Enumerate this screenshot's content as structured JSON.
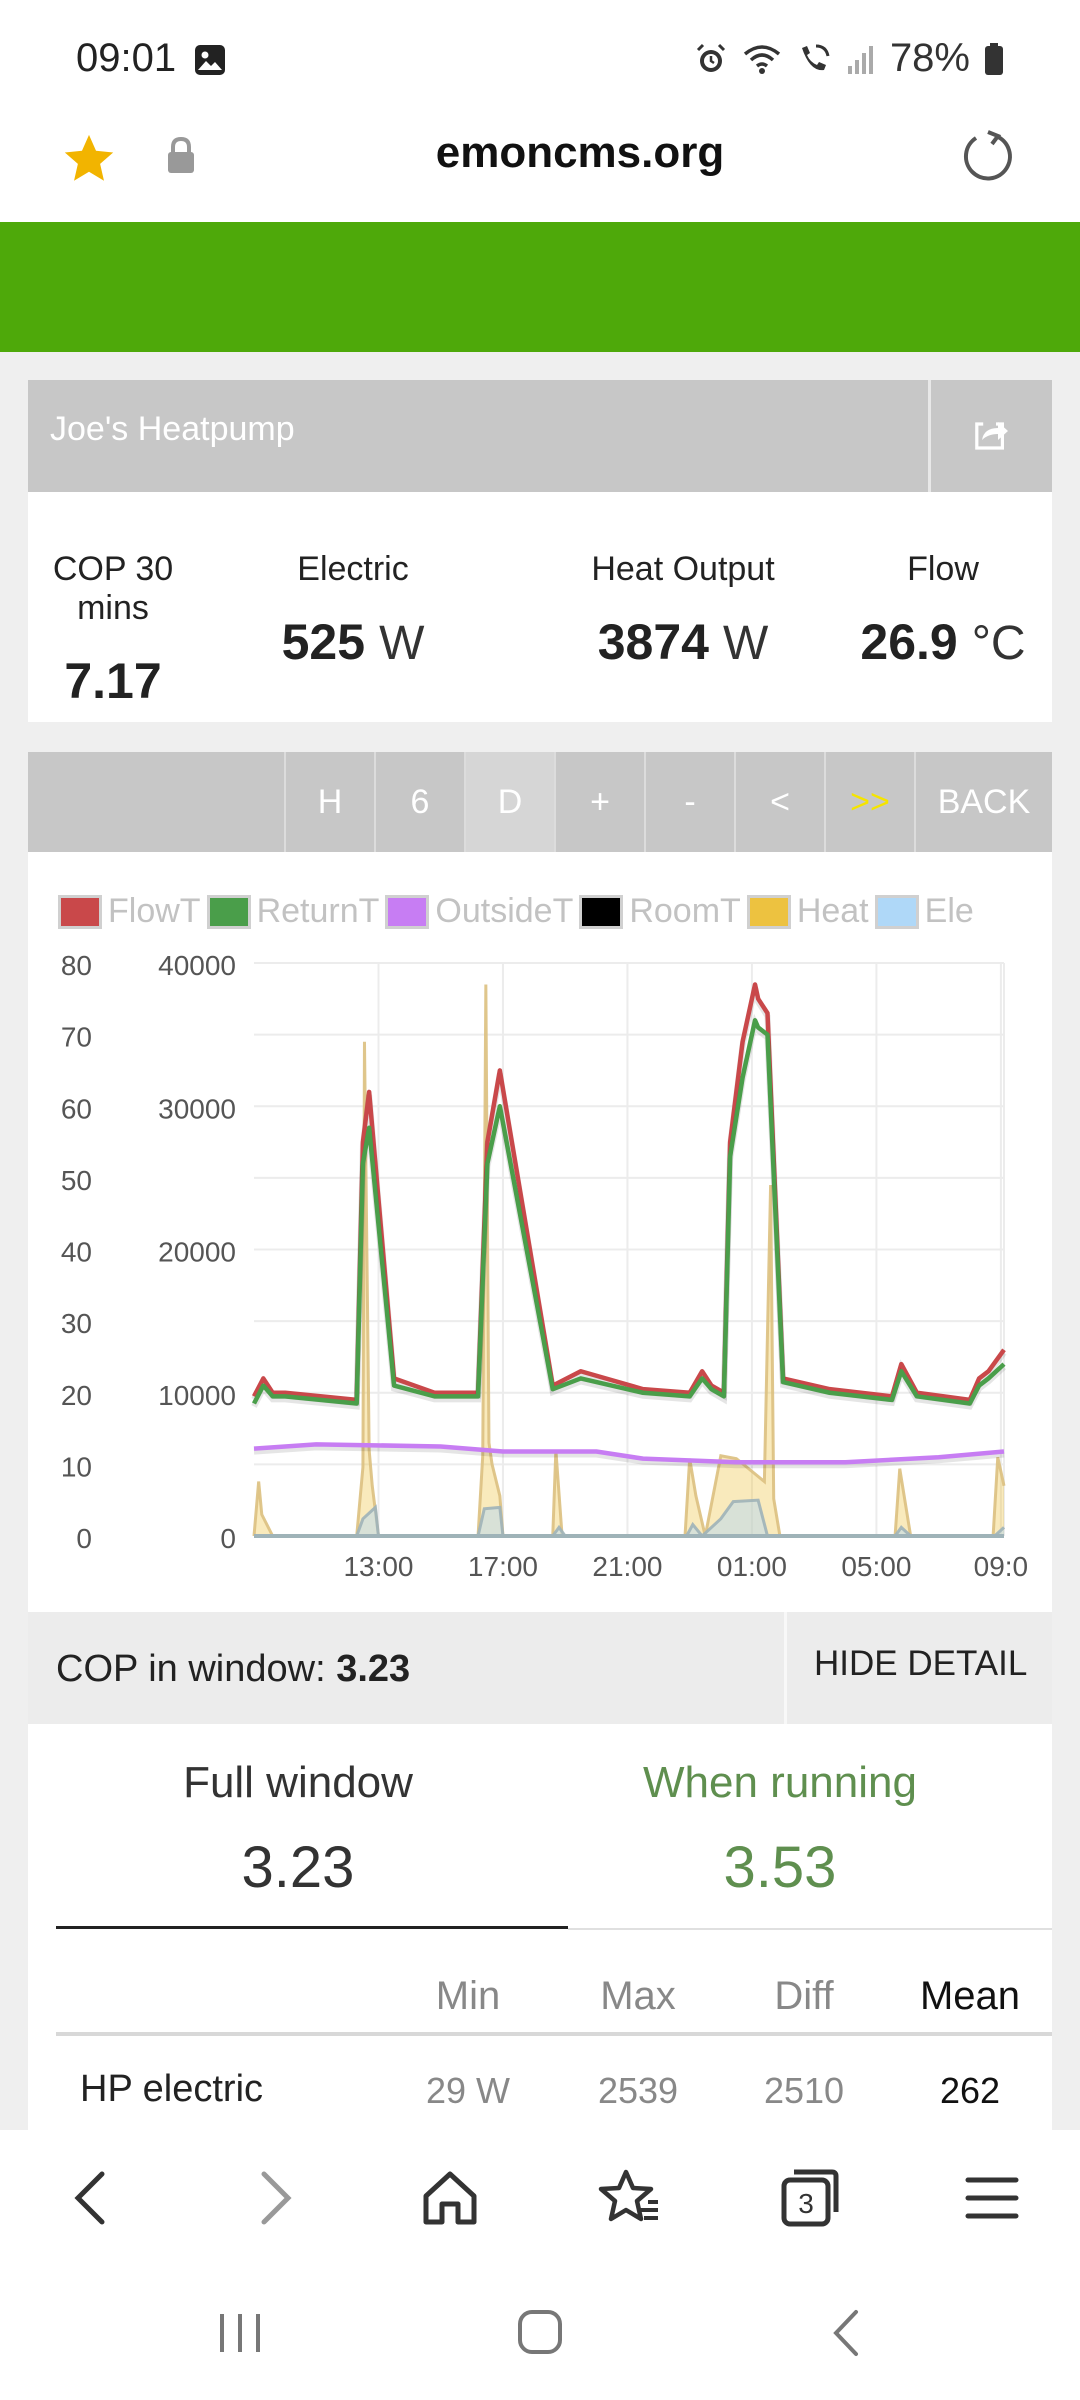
{
  "status_bar": {
    "time": "09:01",
    "battery": "78%",
    "icons": [
      "image-icon",
      "alarm-icon",
      "wifi-icon",
      "wifi-calling-icon",
      "signal-icon",
      "battery-icon"
    ]
  },
  "browser": {
    "url": "emoncms.org",
    "icons": [
      "star-icon",
      "lock-icon",
      "reload-icon"
    ]
  },
  "panel": {
    "title": "Joe's Heatpump"
  },
  "metrics": [
    {
      "label": "COP 30 mins",
      "value": "7.17",
      "unit": ""
    },
    {
      "label": "Electric",
      "value": "525",
      "unit": "W"
    },
    {
      "label": "Heat Output",
      "value": "3874",
      "unit": "W"
    },
    {
      "label": "Flow",
      "value": "26.9",
      "unit": "°C"
    }
  ],
  "range_buttons": [
    "H",
    "6",
    "D",
    "+",
    "-",
    "<",
    ">>",
    "BACK"
  ],
  "colors": {
    "accent_green": "#4ea90a",
    "highlight_yellow": "#f5e400",
    "running_green": "#5f8f4f"
  },
  "chart_data": {
    "type": "line",
    "legend": [
      {
        "name": "FlowT",
        "color": "#c9484a"
      },
      {
        "name": "ReturnT",
        "color": "#4a9e4a"
      },
      {
        "name": "OutsideT",
        "color": "#c77df3"
      },
      {
        "name": "RoomT",
        "color": "#000000"
      },
      {
        "name": "Heat",
        "color": "#edc240"
      },
      {
        "name": "Ele",
        "color": "#afd8f8"
      }
    ],
    "left_axis_ticks": [
      "0",
      "10",
      "20",
      "30",
      "40",
      "50",
      "60",
      "70",
      "80"
    ],
    "right_axis_ticks": [
      "0",
      "10000",
      "20000",
      "30000",
      "40000"
    ],
    "x_ticks": [
      "13:00",
      "17:00",
      "21:00",
      "01:00",
      "05:00",
      "09:0"
    ],
    "ylim_left": [
      0,
      80
    ],
    "ylim_right": [
      0,
      40000
    ],
    "grid": true,
    "series": [
      {
        "name": "FlowT",
        "axis": "left",
        "x": [
          9.0,
          9.3,
          9.6,
          10.0,
          12.3,
          12.5,
          12.7,
          13.5,
          14.8,
          16.2,
          16.5,
          16.9,
          18.6,
          19.5,
          21.5,
          23.0,
          23.4,
          23.7,
          24.1,
          24.3,
          24.7,
          25.1,
          25.2,
          25.5,
          26.0,
          27.5,
          29.5,
          29.8,
          30.3,
          32.0,
          32.3,
          32.6,
          33.1
        ],
        "y": [
          19.5,
          22,
          20,
          20,
          19,
          55,
          62,
          22,
          20,
          20,
          55,
          65,
          21,
          23,
          20.5,
          20,
          23,
          21,
          20,
          55,
          69,
          77,
          75,
          73,
          22,
          20.5,
          19.5,
          24,
          20,
          19,
          22,
          23,
          26
        ]
      },
      {
        "name": "ReturnT",
        "axis": "left",
        "x": [
          9.0,
          9.3,
          9.6,
          10.0,
          12.3,
          12.5,
          12.7,
          13.5,
          14.8,
          16.2,
          16.5,
          16.9,
          18.6,
          19.5,
          21.5,
          23.0,
          23.4,
          23.7,
          24.1,
          24.3,
          24.7,
          25.1,
          25.2,
          25.5,
          26.0,
          27.5,
          29.5,
          29.8,
          30.3,
          32.0,
          32.3,
          32.6,
          33.1
        ],
        "y": [
          18.5,
          21,
          19.5,
          19.5,
          18.5,
          52,
          57,
          21,
          19.5,
          19.5,
          52,
          60,
          20.5,
          22,
          20,
          19.5,
          22,
          20.5,
          19.5,
          53,
          64,
          72,
          71,
          70,
          21.5,
          20,
          19,
          23,
          19.5,
          18.5,
          21,
          22,
          24
        ]
      },
      {
        "name": "OutsideT",
        "axis": "left",
        "x": [
          9.0,
          11.0,
          15.0,
          17.0,
          20.0,
          21.5,
          24.5,
          28.0,
          31.0,
          33.1
        ],
        "y": [
          12.2,
          12.8,
          12.5,
          11.8,
          11.8,
          10.8,
          10.3,
          10.3,
          11.0,
          11.8
        ]
      },
      {
        "name": "Heat",
        "axis": "right",
        "x": [
          9.0,
          9.15,
          9.25,
          9.6,
          12.3,
          12.5,
          12.55,
          12.7,
          12.8,
          13.0,
          16.2,
          16.35,
          16.45,
          16.55,
          16.65,
          16.9,
          17.0,
          18.6,
          18.7,
          18.9,
          22.85,
          23.0,
          23.2,
          23.5,
          24.0,
          24.5,
          25.4,
          25.6,
          25.7,
          25.9,
          29.6,
          29.75,
          30.1,
          32.75,
          32.9,
          33.1
        ],
        "y": [
          0,
          3800,
          1500,
          0,
          0,
          4800,
          34500,
          6000,
          3500,
          0,
          0,
          5600,
          38500,
          6500,
          5000,
          2800,
          0,
          0,
          6000,
          0,
          0,
          5400,
          2800,
          0,
          5600,
          5400,
          3800,
          24500,
          2600,
          0,
          0,
          4700,
          0,
          0,
          5500,
          3500
        ]
      },
      {
        "name": "Ele",
        "axis": "right",
        "x": [
          9.0,
          12.3,
          12.5,
          12.9,
          13.0,
          16.2,
          16.4,
          16.9,
          17.0,
          18.6,
          18.8,
          19.0,
          22.9,
          23.1,
          23.4,
          24.0,
          24.4,
          25.2,
          25.5,
          29.6,
          29.8,
          30.1,
          32.8,
          33.1
        ],
        "y": [
          0,
          0,
          1200,
          2000,
          0,
          0,
          1900,
          2000,
          0,
          0,
          600,
          0,
          0,
          800,
          0,
          1200,
          2400,
          2500,
          0,
          0,
          600,
          0,
          0,
          600
        ]
      }
    ]
  },
  "cop_window": {
    "label": "COP in window: ",
    "value": "3.23",
    "hide_detail": "HIDE DETAIL"
  },
  "detail": {
    "full_window_label": "Full window",
    "full_window_value": "3.23",
    "when_running_label": "When running",
    "when_running_value": "3.53",
    "headers": [
      "Min",
      "Max",
      "Diff",
      "Mean"
    ],
    "rows": [
      {
        "label": "HP electric",
        "min": "29 W",
        "max": "2539",
        "diff": "2510",
        "mean": "262"
      }
    ]
  },
  "nav": {
    "icons": [
      "back-icon",
      "forward-icon",
      "home-icon",
      "bookmarks-icon",
      "tabs-icon",
      "menu-icon"
    ],
    "tabs_count": "3"
  }
}
